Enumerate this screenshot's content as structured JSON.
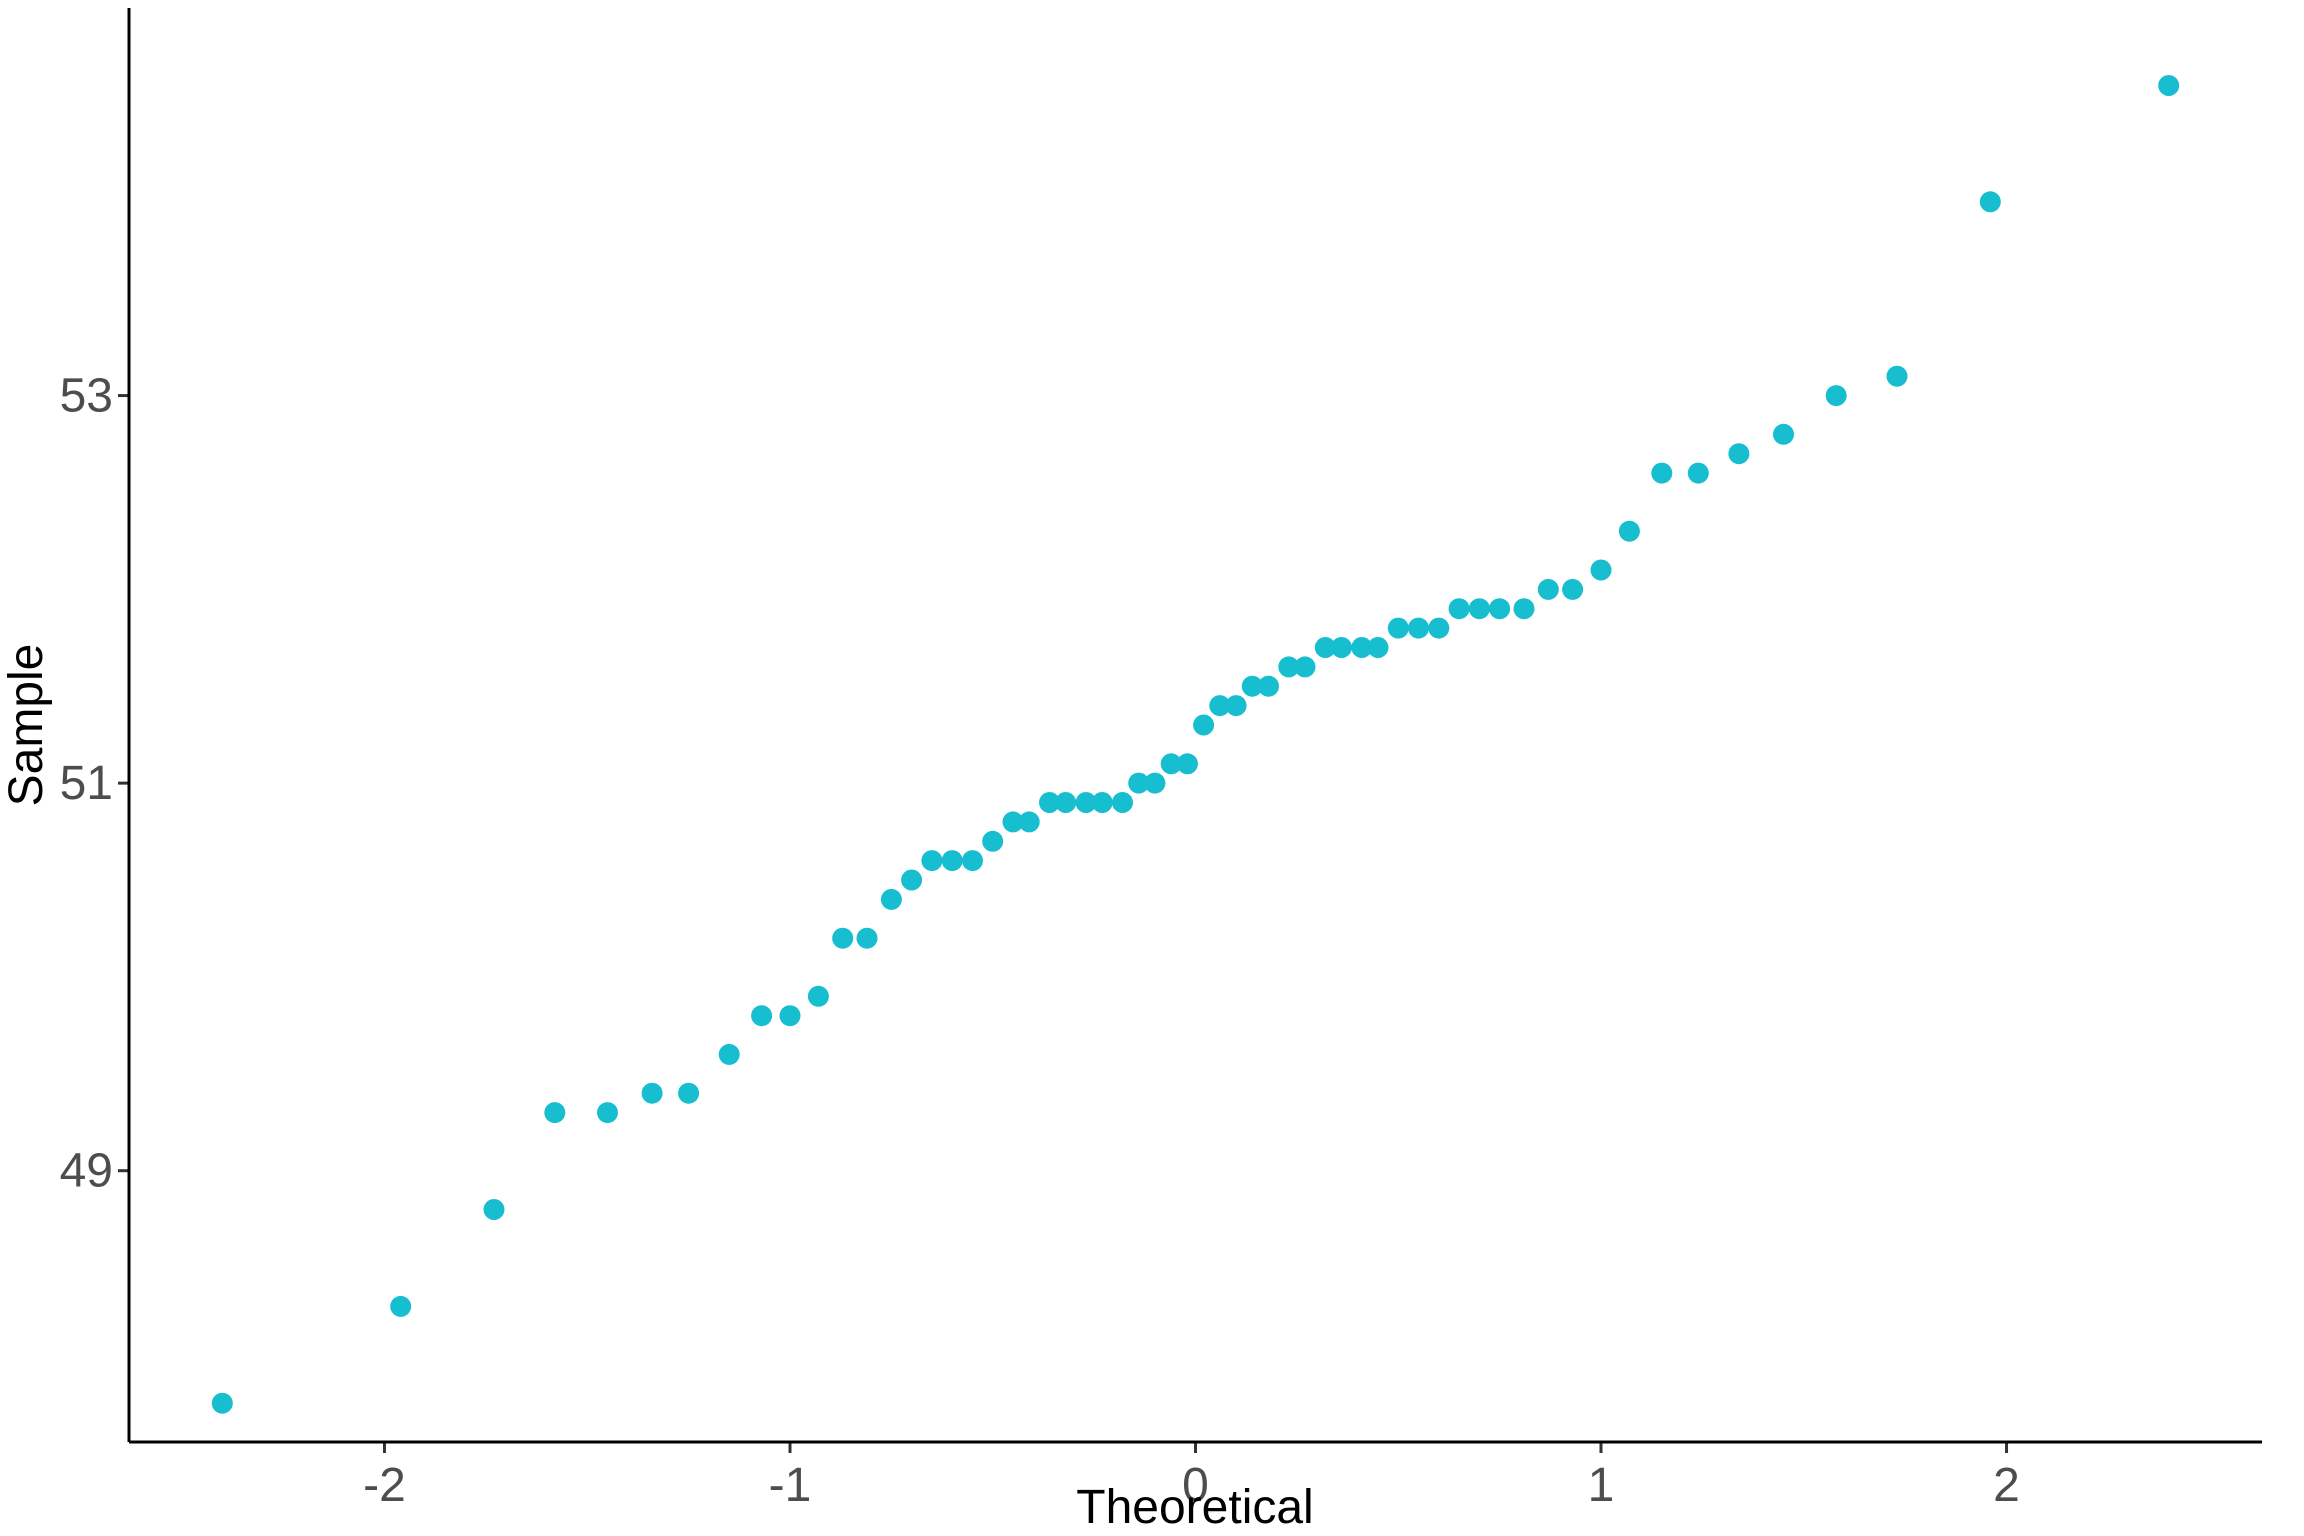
{
  "chart_data": {
    "type": "scatter",
    "title": "",
    "xlabel": "Theoretical",
    "ylabel": "Sample",
    "xlim": [
      -2.63,
      2.63
    ],
    "ylim": [
      47.6,
      55.0
    ],
    "x_ticks": [
      -2,
      -1,
      0,
      1,
      2
    ],
    "x_tick_labels": [
      "-2",
      "-1",
      "0",
      "1",
      "2"
    ],
    "y_ticks": [
      49,
      51,
      53
    ],
    "y_tick_labels": [
      "49",
      "51",
      "53"
    ],
    "grid": false,
    "legend": "none",
    "point_color": "#17BECF",
    "points": [
      {
        "x": -2.4,
        "y": 47.8
      },
      {
        "x": -1.96,
        "y": 48.3
      },
      {
        "x": -1.73,
        "y": 48.8
      },
      {
        "x": -1.58,
        "y": 49.3
      },
      {
        "x": -1.45,
        "y": 49.3
      },
      {
        "x": -1.34,
        "y": 49.4
      },
      {
        "x": -1.25,
        "y": 49.4
      },
      {
        "x": -1.15,
        "y": 49.6
      },
      {
        "x": -1.07,
        "y": 49.8
      },
      {
        "x": -1.0,
        "y": 49.8
      },
      {
        "x": -0.93,
        "y": 49.9
      },
      {
        "x": -0.87,
        "y": 50.2
      },
      {
        "x": -0.81,
        "y": 50.2
      },
      {
        "x": -0.75,
        "y": 50.4
      },
      {
        "x": -0.7,
        "y": 50.5
      },
      {
        "x": -0.65,
        "y": 50.6
      },
      {
        "x": -0.6,
        "y": 50.6
      },
      {
        "x": -0.55,
        "y": 50.6
      },
      {
        "x": -0.5,
        "y": 50.7
      },
      {
        "x": -0.45,
        "y": 50.8
      },
      {
        "x": -0.41,
        "y": 50.8
      },
      {
        "x": -0.36,
        "y": 50.9
      },
      {
        "x": -0.32,
        "y": 50.9
      },
      {
        "x": -0.27,
        "y": 50.9
      },
      {
        "x": -0.23,
        "y": 50.9
      },
      {
        "x": -0.18,
        "y": 50.9
      },
      {
        "x": -0.14,
        "y": 51.0
      },
      {
        "x": -0.1,
        "y": 51.0
      },
      {
        "x": -0.06,
        "y": 51.1
      },
      {
        "x": -0.02,
        "y": 51.1
      },
      {
        "x": 0.02,
        "y": 51.3
      },
      {
        "x": 0.06,
        "y": 51.4
      },
      {
        "x": 0.1,
        "y": 51.4
      },
      {
        "x": 0.14,
        "y": 51.5
      },
      {
        "x": 0.18,
        "y": 51.5
      },
      {
        "x": 0.23,
        "y": 51.6
      },
      {
        "x": 0.27,
        "y": 51.6
      },
      {
        "x": 0.32,
        "y": 51.7
      },
      {
        "x": 0.36,
        "y": 51.7
      },
      {
        "x": 0.41,
        "y": 51.7
      },
      {
        "x": 0.45,
        "y": 51.7
      },
      {
        "x": 0.5,
        "y": 51.8
      },
      {
        "x": 0.55,
        "y": 51.8
      },
      {
        "x": 0.6,
        "y": 51.8
      },
      {
        "x": 0.65,
        "y": 51.9
      },
      {
        "x": 0.7,
        "y": 51.9
      },
      {
        "x": 0.75,
        "y": 51.9
      },
      {
        "x": 0.81,
        "y": 51.9
      },
      {
        "x": 0.87,
        "y": 52.0
      },
      {
        "x": 0.93,
        "y": 52.0
      },
      {
        "x": 1.0,
        "y": 52.1
      },
      {
        "x": 1.07,
        "y": 52.3
      },
      {
        "x": 1.15,
        "y": 52.6
      },
      {
        "x": 1.24,
        "y": 52.6
      },
      {
        "x": 1.34,
        "y": 52.7
      },
      {
        "x": 1.45,
        "y": 52.8
      },
      {
        "x": 1.58,
        "y": 53.0
      },
      {
        "x": 1.73,
        "y": 53.1
      },
      {
        "x": 1.96,
        "y": 54.0
      },
      {
        "x": 2.4,
        "y": 54.6
      }
    ]
  }
}
